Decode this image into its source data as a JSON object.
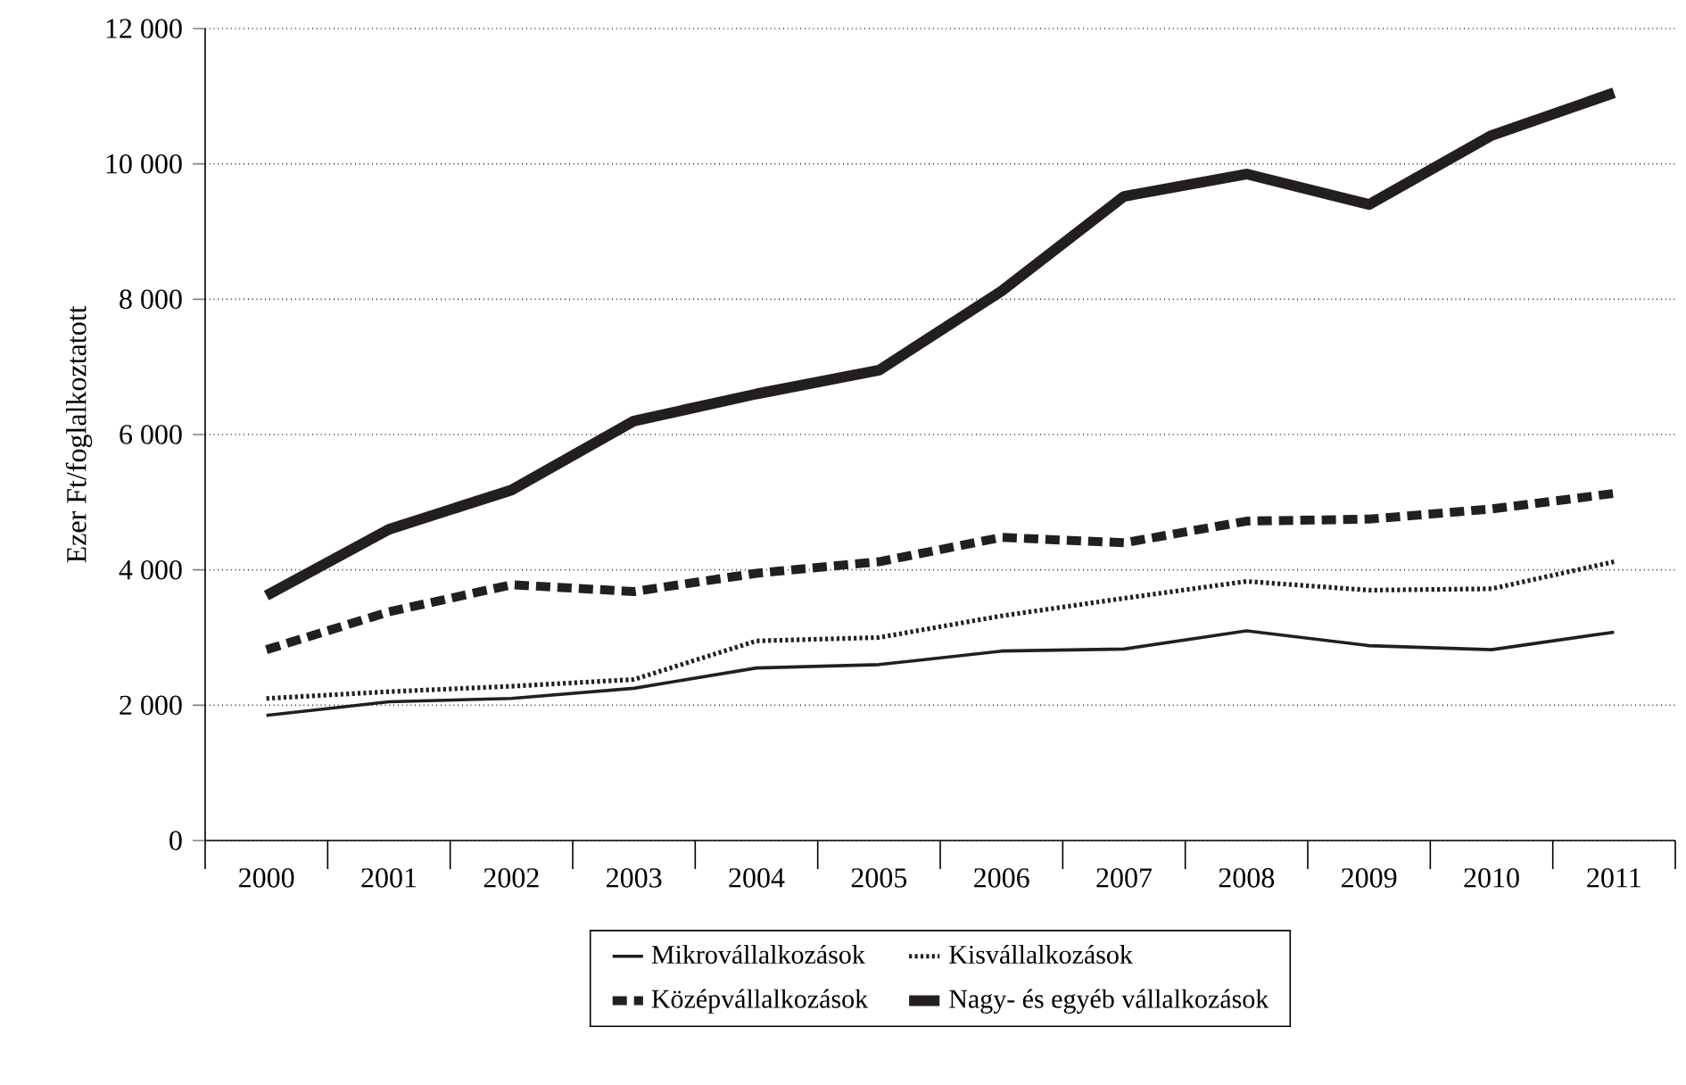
{
  "chart_data": {
    "type": "line",
    "ylabel": "Ezer Ft/foglalkoztatott",
    "categories": [
      "2000",
      "2001",
      "2002",
      "2003",
      "2004",
      "2005",
      "2006",
      "2007",
      "2008",
      "2009",
      "2010",
      "2011"
    ],
    "series": [
      {
        "name": "Mikrovállalkozások",
        "color": "#231f20",
        "line_style": "solid",
        "values": [
          1850,
          2050,
          2100,
          2250,
          2550,
          2600,
          2800,
          2830,
          3100,
          2880,
          2820,
          3080
        ]
      },
      {
        "name": "Kisvállalkozások",
        "color": "#231f20",
        "line_style": "dotted",
        "values": [
          2100,
          2200,
          2280,
          2380,
          2950,
          3000,
          3320,
          3580,
          3830,
          3700,
          3720,
          4120
        ]
      },
      {
        "name": "Középvállalkozások",
        "color": "#231f20",
        "line_style": "dashed",
        "values": [
          2820,
          3380,
          3780,
          3680,
          3950,
          4120,
          4480,
          4400,
          4720,
          4750,
          4900,
          5130
        ]
      },
      {
        "name": "Nagy- és egyéb vállalkozások",
        "color": "#231f20",
        "line_style": "solid",
        "values": [
          3620,
          4600,
          5180,
          6200,
          6600,
          6950,
          8120,
          9520,
          9850,
          9400,
          10420,
          11050
        ]
      }
    ],
    "ylim": [
      0,
      12000
    ],
    "yticks": [
      0,
      {
        "value": 2000,
        "label": "2 000"
      },
      {
        "value": 4000,
        "label": "4 000"
      },
      {
        "value": 6000,
        "label": "6 000"
      },
      {
        "value": 8000,
        "label": "8 000"
      },
      {
        "value": 10000,
        "label": "10 000"
      },
      {
        "value": 12000,
        "label": "12 000"
      }
    ],
    "grid": "y",
    "legend": "bottom",
    "marker": "none"
  }
}
